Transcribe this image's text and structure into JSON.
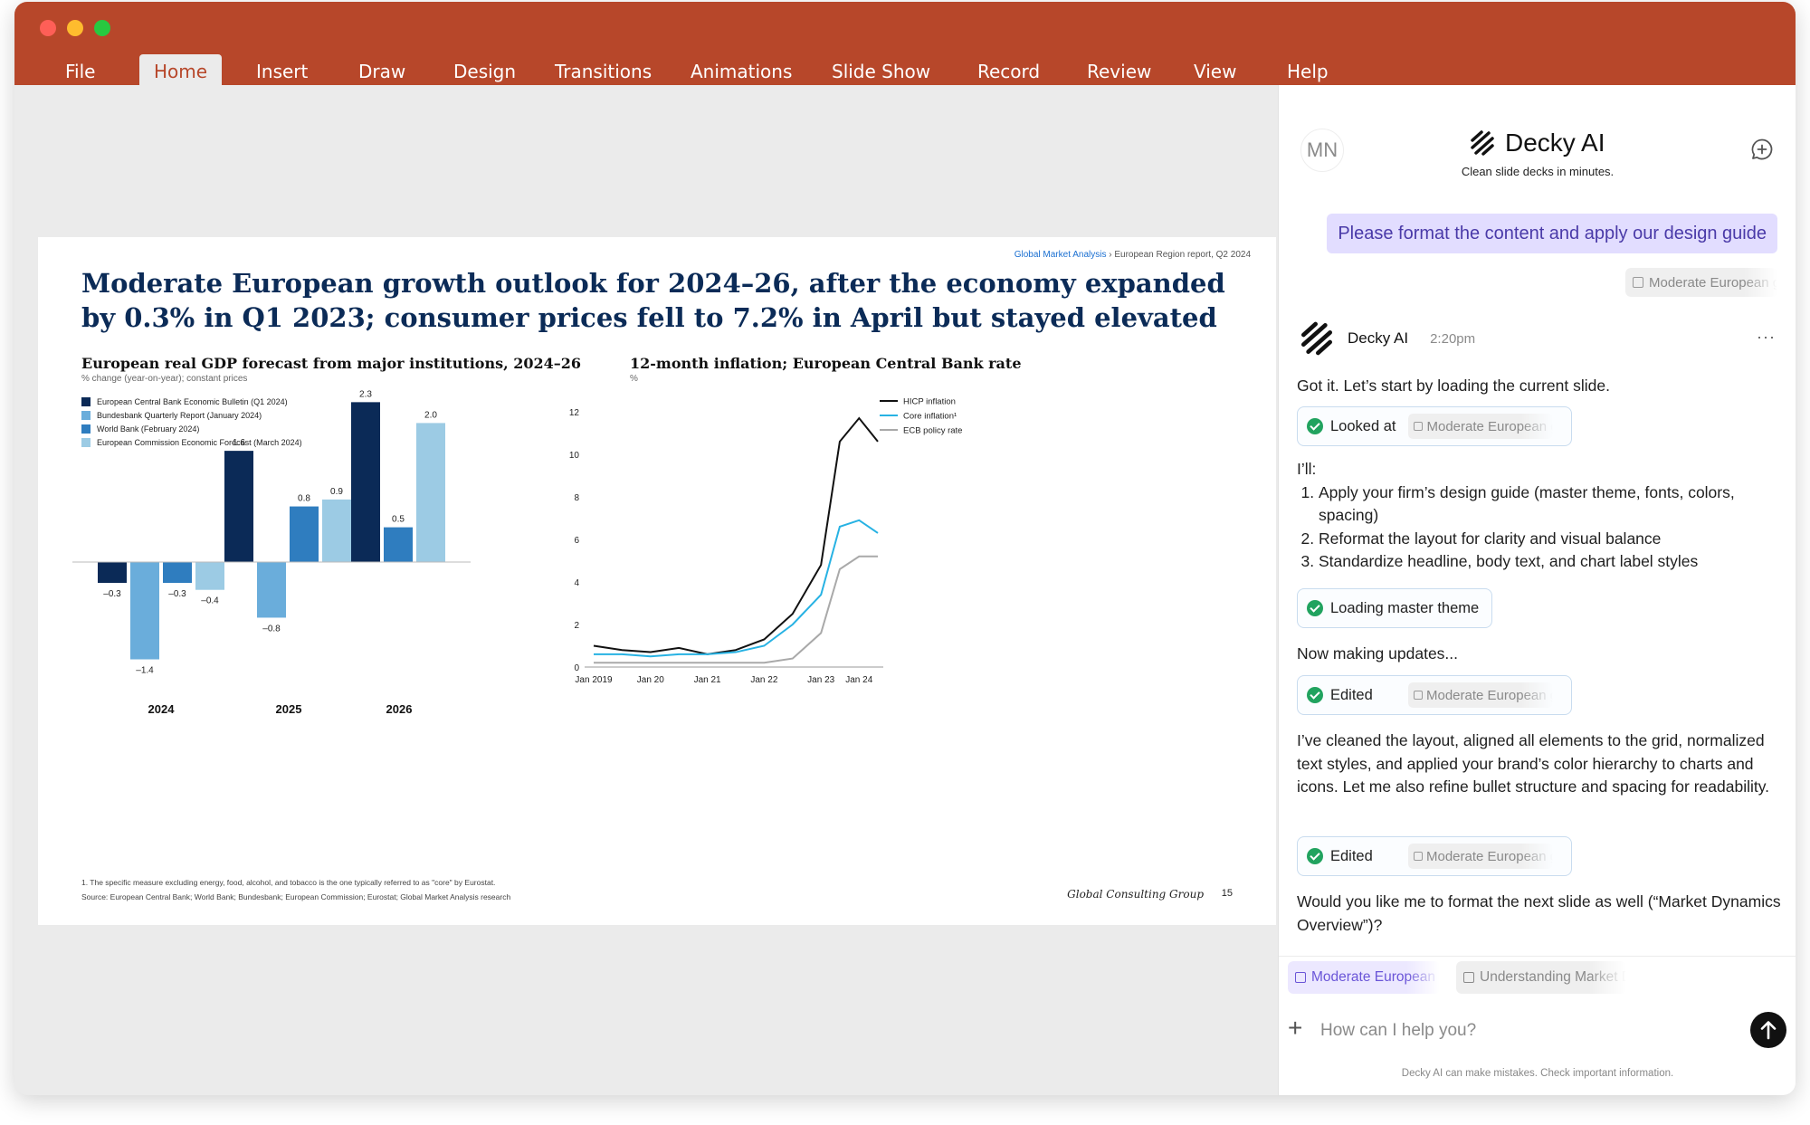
{
  "window": {
    "menu": [
      {
        "label": "File"
      },
      {
        "label": "Home",
        "active": true
      },
      {
        "label": "Insert"
      },
      {
        "label": "Draw"
      },
      {
        "label": "Design"
      },
      {
        "label": "Transitions"
      },
      {
        "label": "Animations"
      },
      {
        "label": "Slide Show"
      },
      {
        "label": "Record"
      },
      {
        "label": "Review"
      },
      {
        "label": "View"
      },
      {
        "label": "Help"
      }
    ],
    "accent": "#b7472a"
  },
  "slide": {
    "breadcrumb_link": "Global Market Analysis",
    "breadcrumb_rest": " › European Region report, Q2 2024",
    "headline": "Moderate European growth outlook for 2024–26, after the economy expanded by 0.3% in Q1 2023; consumer prices fell to 7.2% in April but stayed elevated",
    "left_title": "European real GDP forecast from major institutions, 2024–26",
    "left_subtitle": "% change (year-on-year); constant prices",
    "right_title": "12-month inflation; European Central Bank rate",
    "right_subtitle": "%",
    "footnote_1": "1. The specific measure excluding energy, food, alcohol, and tobacco is the one typically referred to as \"core\" by Eurostat.",
    "footnote_2": "Source: European Central Bank; World Bank; Bundesbank; European Commission; Eurostat; Global Market Analysis research",
    "brand": "Global Consulting Group",
    "page_number": "15"
  },
  "chart_data": [
    {
      "type": "bar",
      "title": "European real GDP forecast from major institutions, 2024–26",
      "subtitle": "% change (year-on-year); constant prices",
      "categories": [
        "2024",
        "2025",
        "2026"
      ],
      "ylim": [
        -1.6,
        2.5
      ],
      "series": [
        {
          "name": "European Central Bank Economic Bulletin (Q1 2024)",
          "color": "#0b2a57",
          "values": [
            -0.3,
            1.6,
            2.3
          ]
        },
        {
          "name": "Bundesbank Quarterly Report (January 2024)",
          "color": "#6aaddb",
          "values": [
            -1.4,
            -0.8,
            null
          ]
        },
        {
          "name": "World Bank (February 2024)",
          "color": "#2f7dbf",
          "values": [
            -0.3,
            0.8,
            0.5
          ]
        },
        {
          "name": "European Commission Economic Forecast (March 2024)",
          "color": "#9ccbe4",
          "values": [
            -0.4,
            0.9,
            2.0
          ]
        }
      ],
      "value_labels": [
        "–0.3",
        "–1.4",
        "–0.3",
        "–0.4",
        "1.6",
        "–0.8",
        "0.8",
        "0.9",
        "2.3",
        "0.5",
        "2.0"
      ],
      "grid": false,
      "legend": "top-left"
    },
    {
      "type": "line",
      "title": "12-month inflation; European Central Bank rate",
      "ylabel": "%",
      "x_ticks": [
        "Jan 2019",
        "Jan 20",
        "Jan 21",
        "Jan 22",
        "Jan 23",
        "Jan 24"
      ],
      "x": [
        2019.0,
        2019.5,
        2020.0,
        2020.5,
        2021.0,
        2021.5,
        2022.0,
        2022.5,
        2023.0,
        2023.33,
        2023.67,
        2024.0
      ],
      "y_ticks": [
        0,
        2,
        4,
        6,
        8,
        10,
        12
      ],
      "ylim": [
        0,
        12
      ],
      "xlim": [
        2019.0,
        2024.0
      ],
      "series": [
        {
          "name": "HICP inflation",
          "color": "#111111",
          "values": [
            1.0,
            0.8,
            0.7,
            0.9,
            0.6,
            0.8,
            1.3,
            2.5,
            4.8,
            10.6,
            11.7,
            10.6
          ]
        },
        {
          "name": "Core inflation¹",
          "color": "#27b2e3",
          "values": [
            0.6,
            0.6,
            0.5,
            0.6,
            0.6,
            0.7,
            1.0,
            2.0,
            3.4,
            6.6,
            6.9,
            6.3
          ]
        },
        {
          "name": "ECB policy rate",
          "color": "#a9a9a9",
          "values": [
            0.2,
            0.2,
            0.2,
            0.2,
            0.2,
            0.2,
            0.2,
            0.4,
            1.6,
            4.6,
            5.2,
            5.2
          ]
        }
      ],
      "grid": false,
      "legend": "top-right"
    }
  ],
  "panel": {
    "avatar": "MN",
    "name": "Decky AI",
    "tagline": "Clean slide decks in minutes.",
    "user_message": "Please format the content and apply our design guide",
    "user_attachment": "Moderate European growth outlook",
    "bot_name": "Decky AI",
    "bot_time": "2:20pm",
    "more": "···",
    "msg_1": "Got it. Let’s start by loading the current slide.",
    "status_1": "Looked at",
    "status_1_chip": "Moderate European growth outlook",
    "msg_2_intro": "I’ll:",
    "steps": [
      "Apply your firm’s design guide (master theme, fonts, colors, spacing)",
      "Reformat the layout for clarity and visual balance",
      "Standardize headline, body text, and chart label styles"
    ],
    "status_2": "Loading master theme",
    "msg_3": "Now making updates...",
    "status_3": "Edited",
    "status_3_chip": "Moderate European growth outlook",
    "msg_4": "I’ve cleaned the layout, aligned all elements to the grid, normalized text styles, and applied your brand’s color hierarchy to charts and icons. Let me also refine bullet structure and spacing for readability.",
    "status_4": "Edited",
    "status_4_chip": "Moderate European growth outlook",
    "msg_5": "Would you like me to format the next slide as well (“Market Dynamics Overview”)?",
    "context_1": "Moderate European growth outlook",
    "context_2": "Understanding Market Dynamics",
    "input_placeholder": "How can I help you?",
    "disclaimer": "Decky AI can make mistakes. Check important information."
  }
}
